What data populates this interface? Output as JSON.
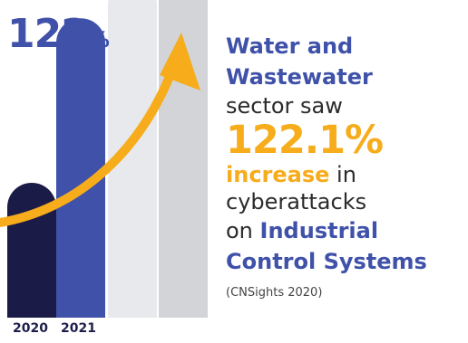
{
  "chart_data": {
    "type": "bar",
    "categories": [
      "2020",
      "2021",
      "",
      ""
    ],
    "values": [
      1.0,
      2.22,
      2.5,
      2.85
    ],
    "colors": [
      "#1b1b48",
      "#3f51a9",
      "#e8e9ec",
      "#d2d4d8"
    ],
    "arrow_color": "#f6ac1b",
    "headline": {
      "number": "122",
      "symbol": "%"
    }
  },
  "text": {
    "line1": "Water and",
    "line2": "Wastewater",
    "line3": "sector saw",
    "stat": "122.1%",
    "increase": "increase",
    "in": " in",
    "line6": "cyberattacks",
    "on": "on ",
    "industrial": "Industrial",
    "line8": "Control Systems",
    "source": "(CNSights 2020)"
  }
}
